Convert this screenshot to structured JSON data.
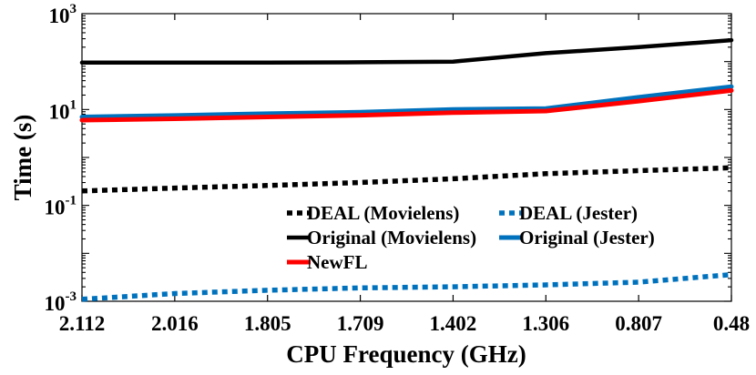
{
  "chart_data": {
    "type": "line",
    "yscale": "log",
    "xlabel": "CPU Frequency (GHz)",
    "ylabel": "Time (s)",
    "ylim": [
      0.001,
      1000
    ],
    "yticks": [
      {
        "value": 0.001,
        "base": "10",
        "exp": "-3"
      },
      {
        "value": 0.1,
        "base": "10",
        "exp": "-1"
      },
      {
        "value": 10,
        "base": "10",
        "exp": "1"
      },
      {
        "value": 1000,
        "base": "10",
        "exp": "3"
      }
    ],
    "categories": [
      "2.112",
      "2.016",
      "1.805",
      "1.709",
      "1.402",
      "1.306",
      "0.807",
      "0.48"
    ],
    "series": [
      {
        "name": "Original (Movielens)",
        "color": "#000000",
        "dash": "solid",
        "values": [
          95,
          95,
          95,
          97,
          100,
          150,
          200,
          280
        ]
      },
      {
        "name": "Original (Jester)",
        "color": "#0072bd",
        "dash": "solid",
        "values": [
          7.0,
          7.5,
          8.2,
          8.8,
          10.0,
          10.5,
          18,
          30
        ]
      },
      {
        "name": "NewFL",
        "color": "#ff0000",
        "dash": "solid",
        "values": [
          6.0,
          6.4,
          7.0,
          7.6,
          8.6,
          9.3,
          15,
          25
        ]
      },
      {
        "name": "DEAL (Movielens)",
        "color": "#000000",
        "dash": "dotted",
        "values": [
          0.2,
          0.23,
          0.26,
          0.3,
          0.36,
          0.46,
          0.53,
          0.61
        ]
      },
      {
        "name": "DEAL (Jester)",
        "color": "#0072bd",
        "dash": "dotted",
        "values": [
          0.0011,
          0.00145,
          0.0017,
          0.0019,
          0.002,
          0.0022,
          0.0025,
          0.0036
        ]
      }
    ],
    "legend": [
      {
        "series": "DEAL (Movielens)",
        "label": "DEAL (Movielens)"
      },
      {
        "series": "DEAL (Jester)",
        "label": "DEAL (Jester)"
      },
      {
        "series": "Original (Movielens)",
        "label": "Original (Movielens)"
      },
      {
        "series": "Original (Jester)",
        "label": "Original (Jester)"
      },
      {
        "series": "NewFL",
        "label": "NewFL"
      }
    ],
    "legend_position": "lower-right",
    "grid": false
  }
}
